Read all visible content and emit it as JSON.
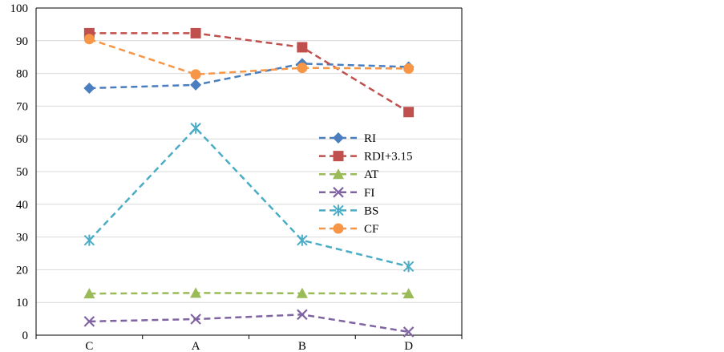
{
  "chart_data": {
    "type": "line",
    "title": "",
    "xlabel": "",
    "ylabel": "",
    "categories": [
      "C",
      "A",
      "B",
      "D"
    ],
    "ylim": [
      0,
      100
    ],
    "yticks": [
      0,
      10,
      20,
      30,
      40,
      50,
      60,
      70,
      80,
      90,
      100
    ],
    "grid": true,
    "legend_position": "right-center",
    "series": [
      {
        "name": "RI",
        "color": "#4a7ebf",
        "marker": "diamond",
        "values": [
          75.5,
          76.5,
          83,
          82
        ]
      },
      {
        "name": "RDI+3.15",
        "color": "#c0504d",
        "marker": "square",
        "values": [
          92.3,
          92.3,
          88,
          68.2
        ]
      },
      {
        "name": "AT",
        "color": "#9bbb59",
        "marker": "triangle",
        "values": [
          12.7,
          12.9,
          12.8,
          12.7
        ]
      },
      {
        "name": "FI",
        "color": "#8064a2",
        "marker": "x",
        "values": [
          4.2,
          4.9,
          6.3,
          1
        ]
      },
      {
        "name": "BS",
        "color": "#4bacc6",
        "marker": "asterisk",
        "values": [
          29,
          63.3,
          29,
          21
        ]
      },
      {
        "name": "CF",
        "color": "#f79646",
        "marker": "circle",
        "values": [
          90.5,
          79.7,
          81.7,
          81.5
        ]
      }
    ]
  }
}
